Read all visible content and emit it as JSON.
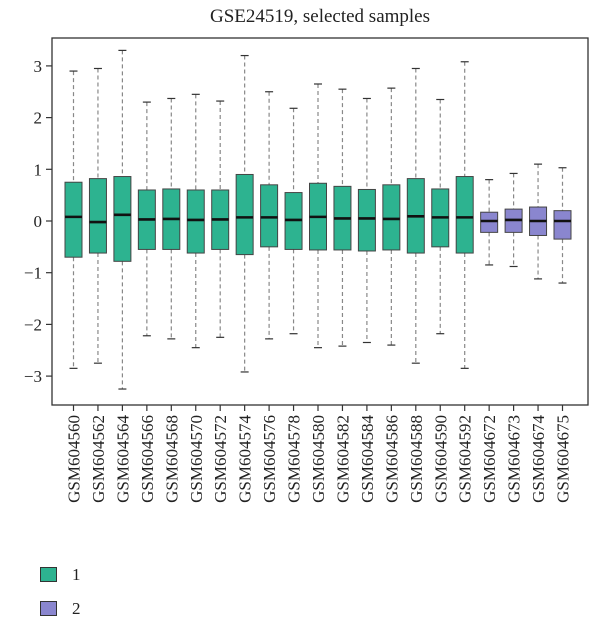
{
  "chart_data": {
    "type": "boxplot",
    "title": "GSE24519, selected samples",
    "xlabel": "",
    "ylabel": "",
    "ylim": [
      -3.5,
      3.5
    ],
    "yticks": [
      -3,
      -2,
      -1,
      0,
      1,
      2,
      3
    ],
    "grid": false,
    "legend_placement": "bottom-left",
    "groups": [
      {
        "name": "1",
        "color": "#2db390"
      },
      {
        "name": "2",
        "color": "#8a86cf"
      }
    ],
    "samples": [
      {
        "label": "GSM604560",
        "group": "1",
        "min": -2.85,
        "q1": -0.7,
        "median": 0.08,
        "q3": 0.75,
        "max": 2.9
      },
      {
        "label": "GSM604562",
        "group": "1",
        "min": -2.75,
        "q1": -0.62,
        "median": -0.02,
        "q3": 0.82,
        "max": 2.95
      },
      {
        "label": "GSM604564",
        "group": "1",
        "min": -3.25,
        "q1": -0.78,
        "median": 0.12,
        "q3": 0.86,
        "max": 3.3
      },
      {
        "label": "GSM604566",
        "group": "1",
        "min": -2.22,
        "q1": -0.55,
        "median": 0.03,
        "q3": 0.6,
        "max": 2.3
      },
      {
        "label": "GSM604568",
        "group": "1",
        "min": -2.28,
        "q1": -0.55,
        "median": 0.04,
        "q3": 0.62,
        "max": 2.37
      },
      {
        "label": "GSM604570",
        "group": "1",
        "min": -2.45,
        "q1": -0.62,
        "median": 0.02,
        "q3": 0.6,
        "max": 2.45
      },
      {
        "label": "GSM604572",
        "group": "1",
        "min": -2.25,
        "q1": -0.55,
        "median": 0.03,
        "q3": 0.6,
        "max": 2.32
      },
      {
        "label": "GSM604574",
        "group": "1",
        "min": -2.92,
        "q1": -0.65,
        "median": 0.07,
        "q3": 0.9,
        "max": 3.2
      },
      {
        "label": "GSM604576",
        "group": "1",
        "min": -2.28,
        "q1": -0.5,
        "median": 0.07,
        "q3": 0.7,
        "max": 2.5
      },
      {
        "label": "GSM604578",
        "group": "1",
        "min": -2.18,
        "q1": -0.55,
        "median": 0.02,
        "q3": 0.55,
        "max": 2.18
      },
      {
        "label": "GSM604580",
        "group": "1",
        "min": -2.45,
        "q1": -0.56,
        "median": 0.08,
        "q3": 0.73,
        "max": 2.65
      },
      {
        "label": "GSM604582",
        "group": "1",
        "min": -2.42,
        "q1": -0.56,
        "median": 0.05,
        "q3": 0.67,
        "max": 2.55
      },
      {
        "label": "GSM604584",
        "group": "1",
        "min": -2.35,
        "q1": -0.58,
        "median": 0.05,
        "q3": 0.61,
        "max": 2.37
      },
      {
        "label": "GSM604586",
        "group": "1",
        "min": -2.4,
        "q1": -0.56,
        "median": 0.04,
        "q3": 0.7,
        "max": 2.57
      },
      {
        "label": "GSM604588",
        "group": "1",
        "min": -2.75,
        "q1": -0.62,
        "median": 0.09,
        "q3": 0.82,
        "max": 2.95
      },
      {
        "label": "GSM604590",
        "group": "1",
        "min": -2.18,
        "q1": -0.5,
        "median": 0.07,
        "q3": 0.62,
        "max": 2.35
      },
      {
        "label": "GSM604592",
        "group": "1",
        "min": -2.85,
        "q1": -0.62,
        "median": 0.07,
        "q3": 0.86,
        "max": 3.08
      },
      {
        "label": "GSM604672",
        "group": "2",
        "min": -0.85,
        "q1": -0.22,
        "median": 0.0,
        "q3": 0.17,
        "max": 0.8
      },
      {
        "label": "GSM604673",
        "group": "2",
        "min": -0.88,
        "q1": -0.22,
        "median": 0.02,
        "q3": 0.23,
        "max": 0.92
      },
      {
        "label": "GSM604674",
        "group": "2",
        "min": -1.12,
        "q1": -0.28,
        "median": 0.0,
        "q3": 0.27,
        "max": 1.1
      },
      {
        "label": "GSM604675",
        "group": "2",
        "min": -1.2,
        "q1": -0.35,
        "median": 0.0,
        "q3": 0.2,
        "max": 1.03
      }
    ]
  }
}
